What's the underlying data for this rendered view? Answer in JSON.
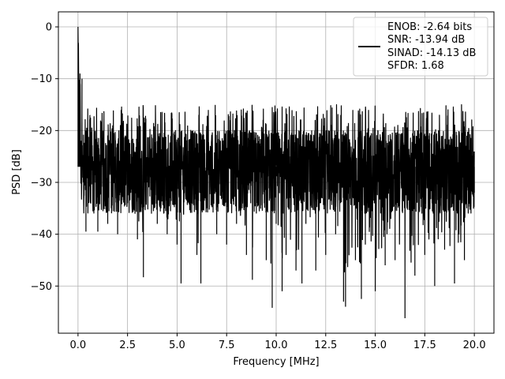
{
  "chart_data": {
    "type": "line",
    "title": "",
    "xlabel": "Frequency [MHz]",
    "ylabel": "PSD [dB]",
    "xlim": [
      -0.99,
      20.99
    ],
    "ylim": [
      -59.1,
      2.9
    ],
    "xticks": [
      0.0,
      2.5,
      5.0,
      7.5,
      10.0,
      12.5,
      15.0,
      17.5,
      20.0
    ],
    "xtick_labels": [
      "0.0",
      "2.5",
      "5.0",
      "7.5",
      "10.0",
      "12.5",
      "15.0",
      "17.5",
      "20.0"
    ],
    "yticks": [
      0,
      -10,
      -20,
      -30,
      -40,
      -50
    ],
    "ytick_labels": [
      "0",
      "−10",
      "−20",
      "−30",
      "−40",
      "−50"
    ],
    "grid": true,
    "legend_position": "top-right",
    "line_color": "#000000",
    "legend_entries": [
      "ENOB: -2.64 bits",
      "SNR: -13.94 dB",
      "SINAD: -14.13 dB",
      "SFDR: 1.68"
    ],
    "series": [
      {
        "description_of_shape": "dense noise floor",
        "x": [
          0.0,
          0.02,
          0.04,
          0.06,
          0.08,
          0.1,
          0.15,
          0.2,
          0.3,
          0.4,
          0.5,
          0.6,
          0.8,
          1.0,
          1.2,
          1.5,
          1.8,
          2.0,
          2.5,
          3.0,
          3.3,
          3.5,
          4.0,
          4.5,
          5.0,
          5.2,
          5.5,
          6.0,
          6.2,
          6.5,
          7.0,
          7.5,
          8.0,
          8.5,
          8.8,
          9.0,
          9.5,
          9.8,
          10.0,
          10.3,
          10.5,
          11.0,
          11.3,
          11.5,
          12.0,
          12.5,
          13.0,
          13.4,
          13.5,
          14.0,
          14.3,
          14.5,
          15.0,
          15.5,
          16.0,
          16.5,
          17.0,
          17.5,
          18.0,
          18.5,
          19.0,
          19.5,
          20.0
        ],
        "y": [
          0.0,
          -5.0,
          -14.0,
          -12.0,
          -20.0,
          -9.0,
          -26.0,
          -10.0,
          -33.0,
          -39.5,
          -30.0,
          -17.0,
          -36.0,
          -39.5,
          -25.0,
          -38.0,
          -22.0,
          -40.0,
          -34.0,
          -41.0,
          -48.3,
          -30.0,
          -38.0,
          -40.0,
          -42.0,
          -49.5,
          -30.0,
          -44.0,
          -49.5,
          -35.0,
          -40.0,
          -42.0,
          -38.0,
          -44.0,
          -48.8,
          -36.0,
          -45.0,
          -54.2,
          -38.0,
          -51.0,
          -44.0,
          -47.0,
          -49.5,
          -38.0,
          -47.0,
          -44.0,
          -40.0,
          -53.0,
          -54.0,
          -45.0,
          -52.5,
          -42.0,
          -51.0,
          -46.0,
          -45.0,
          -56.2,
          -48.0,
          -44.0,
          -50.0,
          -43.0,
          -49.5,
          -45.0,
          -32.0
        ]
      }
    ]
  }
}
